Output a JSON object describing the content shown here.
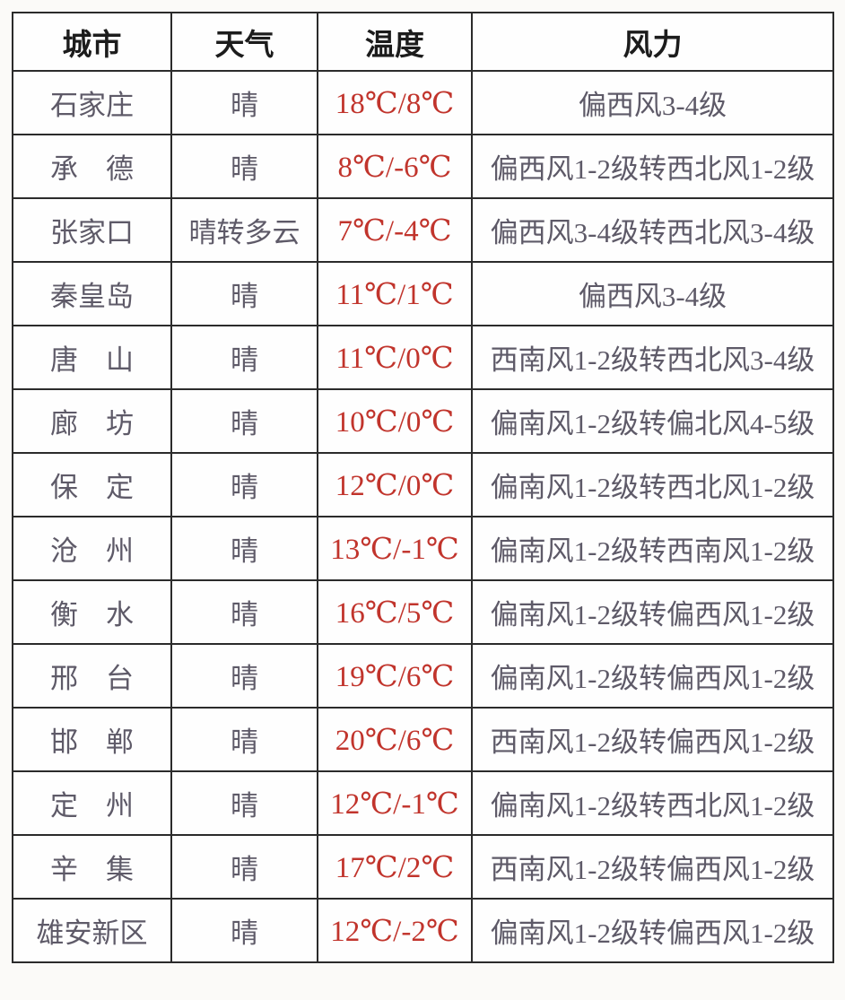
{
  "colors": {
    "header_text": "#1c1c1c",
    "body_text": "#5e5a68",
    "temperature_text": "#c1342c",
    "border": "#2b2b2b",
    "table_background": "#fefefe"
  },
  "chart_data": {
    "type": "table",
    "title": "",
    "columns": [
      "城市",
      "天气",
      "温度",
      "风力"
    ],
    "rows": [
      [
        "石家庄",
        "晴",
        "18℃/8℃",
        "偏西风3-4级"
      ],
      [
        "承　德",
        "晴",
        "8℃/-6℃",
        "偏西风1-2级转西北风1-2级"
      ],
      [
        "张家口",
        "晴转多云",
        "7℃/-4℃",
        "偏西风3-4级转西北风3-4级"
      ],
      [
        "秦皇岛",
        "晴",
        "11℃/1℃",
        "偏西风3-4级"
      ],
      [
        "唐　山",
        "晴",
        "11℃/0℃",
        "西南风1-2级转西北风3-4级"
      ],
      [
        "廊　坊",
        "晴",
        "10℃/0℃",
        "偏南风1-2级转偏北风4-5级"
      ],
      [
        "保　定",
        "晴",
        "12℃/0℃",
        "偏南风1-2级转西北风1-2级"
      ],
      [
        "沧　州",
        "晴",
        "13℃/-1℃",
        "偏南风1-2级转西南风1-2级"
      ],
      [
        "衡　水",
        "晴",
        "16℃/5℃",
        "偏南风1-2级转偏西风1-2级"
      ],
      [
        "邢　台",
        "晴",
        "19℃/6℃",
        "偏南风1-2级转偏西风1-2级"
      ],
      [
        "邯　郸",
        "晴",
        "20℃/6℃",
        "西南风1-2级转偏西风1-2级"
      ],
      [
        "定　州",
        "晴",
        "12℃/-1℃",
        "偏南风1-2级转西北风1-2级"
      ],
      [
        "辛　集",
        "晴",
        "17℃/2℃",
        "西南风1-2级转偏西风1-2级"
      ],
      [
        "雄安新区",
        "晴",
        "12℃/-2℃",
        "偏南风1-2级转偏西风1-2级"
      ]
    ]
  }
}
